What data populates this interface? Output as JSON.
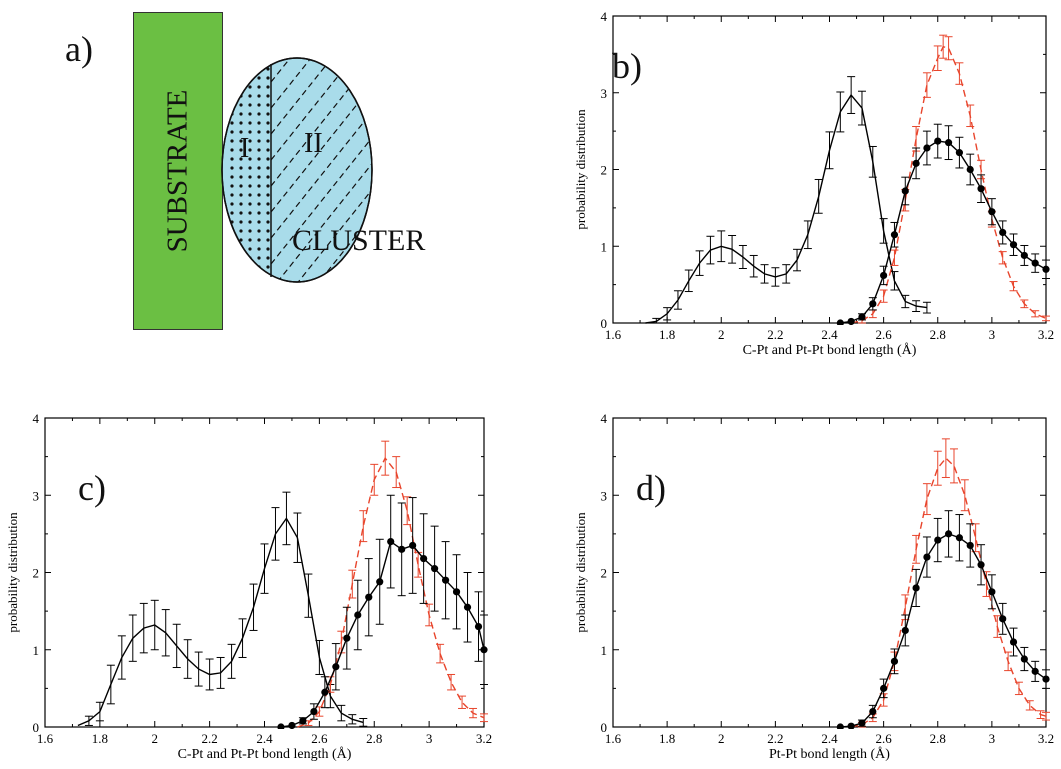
{
  "panel_a": {
    "label": "a)",
    "substrate": "SUBSTRATE",
    "cluster": "CLUSTER",
    "region_1": "I",
    "region_2": "II",
    "colors": {
      "substrate": "#6bbf43",
      "cluster": "#a9dcea"
    }
  },
  "chart_data": [
    {
      "panel": "b)",
      "type": "line",
      "xlabel": "C-Pt and Pt-Pt bond length (Å)",
      "ylabel": "probability distribution",
      "xlim": [
        1.6,
        3.2
      ],
      "ylim": [
        0,
        4
      ],
      "xticks": [
        "1.6",
        "1.8",
        "2",
        "2.2",
        "2.4",
        "2.6",
        "2.8",
        "3",
        "3.2"
      ],
      "yticks": [
        "0",
        "1",
        "2",
        "3",
        "4"
      ],
      "grid": false,
      "series": [
        {
          "style": "solid-errorbars",
          "color": "#000000",
          "points": [
            [
              1.72,
              0.0,
              0.02
            ],
            [
              1.76,
              0.02,
              0.04
            ],
            [
              1.8,
              0.12,
              0.08
            ],
            [
              1.84,
              0.3,
              0.12
            ],
            [
              1.88,
              0.55,
              0.14
            ],
            [
              1.92,
              0.78,
              0.16
            ],
            [
              1.96,
              0.95,
              0.18
            ],
            [
              2.0,
              1.0,
              0.2
            ],
            [
              2.04,
              0.96,
              0.18
            ],
            [
              2.08,
              0.86,
              0.15
            ],
            [
              2.12,
              0.74,
              0.14
            ],
            [
              2.16,
              0.64,
              0.12
            ],
            [
              2.2,
              0.6,
              0.12
            ],
            [
              2.24,
              0.64,
              0.12
            ],
            [
              2.28,
              0.82,
              0.14
            ],
            [
              2.32,
              1.15,
              0.18
            ],
            [
              2.36,
              1.65,
              0.22
            ],
            [
              2.4,
              2.25,
              0.24
            ],
            [
              2.44,
              2.75,
              0.26
            ],
            [
              2.48,
              2.97,
              0.24
            ],
            [
              2.52,
              2.8,
              0.22
            ],
            [
              2.56,
              2.1,
              0.2
            ],
            [
              2.6,
              1.2,
              0.16
            ],
            [
              2.64,
              0.55,
              0.12
            ],
            [
              2.68,
              0.28,
              0.08
            ],
            [
              2.72,
              0.22,
              0.07
            ],
            [
              2.76,
              0.2,
              0.07
            ]
          ]
        },
        {
          "style": "dashed-errorbars",
          "color": "#e8452c",
          "points": [
            [
              2.48,
              0.0,
              0.02
            ],
            [
              2.52,
              0.03,
              0.03
            ],
            [
              2.56,
              0.12,
              0.05
            ],
            [
              2.6,
              0.35,
              0.08
            ],
            [
              2.64,
              0.85,
              0.1
            ],
            [
              2.68,
              1.6,
              0.14
            ],
            [
              2.72,
              2.4,
              0.16
            ],
            [
              2.76,
              3.1,
              0.16
            ],
            [
              2.8,
              3.45,
              0.16
            ],
            [
              2.82,
              3.6,
              0.15
            ],
            [
              2.84,
              3.58,
              0.15
            ],
            [
              2.88,
              3.25,
              0.14
            ],
            [
              2.92,
              2.7,
              0.14
            ],
            [
              2.96,
              2.0,
              0.12
            ],
            [
              3.0,
              1.35,
              0.1
            ],
            [
              3.04,
              0.85,
              0.08
            ],
            [
              3.08,
              0.48,
              0.06
            ],
            [
              3.12,
              0.25,
              0.05
            ],
            [
              3.16,
              0.12,
              0.04
            ],
            [
              3.2,
              0.06,
              0.03
            ]
          ]
        },
        {
          "style": "dots-errorbars",
          "color": "#000000",
          "points": [
            [
              2.44,
              0.0,
              0.02
            ],
            [
              2.48,
              0.02,
              0.02
            ],
            [
              2.52,
              0.08,
              0.04
            ],
            [
              2.56,
              0.25,
              0.08
            ],
            [
              2.6,
              0.62,
              0.12
            ],
            [
              2.64,
              1.15,
              0.16
            ],
            [
              2.68,
              1.72,
              0.18
            ],
            [
              2.72,
              2.08,
              0.2
            ],
            [
              2.76,
              2.28,
              0.22
            ],
            [
              2.8,
              2.37,
              0.22
            ],
            [
              2.84,
              2.35,
              0.22
            ],
            [
              2.88,
              2.22,
              0.2
            ],
            [
              2.92,
              2.0,
              0.2
            ],
            [
              2.96,
              1.75,
              0.18
            ],
            [
              3.0,
              1.45,
              0.17
            ],
            [
              3.04,
              1.18,
              0.15
            ],
            [
              3.08,
              1.02,
              0.14
            ],
            [
              3.12,
              0.88,
              0.13
            ],
            [
              3.16,
              0.78,
              0.12
            ],
            [
              3.2,
              0.7,
              0.12
            ]
          ]
        }
      ]
    },
    {
      "panel": "c)",
      "type": "line",
      "xlabel": "C-Pt and Pt-Pt bond length (Å)",
      "ylabel": "probability distribution",
      "xlim": [
        1.6,
        3.2
      ],
      "ylim": [
        0,
        4
      ],
      "xticks": [
        "1.6",
        "1.8",
        "2",
        "2.2",
        "2.4",
        "2.6",
        "2.8",
        "3",
        "3.2"
      ],
      "yticks": [
        "0",
        "1",
        "2",
        "3",
        "4"
      ],
      "grid": false,
      "series": [
        {
          "style": "solid-errorbars",
          "color": "#000000",
          "points": [
            [
              1.72,
              0.02,
              0.02
            ],
            [
              1.76,
              0.08,
              0.06
            ],
            [
              1.8,
              0.2,
              0.12
            ],
            [
              1.84,
              0.55,
              0.25
            ],
            [
              1.88,
              0.9,
              0.28
            ],
            [
              1.92,
              1.15,
              0.3
            ],
            [
              1.96,
              1.28,
              0.32
            ],
            [
              2.0,
              1.32,
              0.32
            ],
            [
              2.04,
              1.22,
              0.3
            ],
            [
              2.08,
              1.05,
              0.28
            ],
            [
              2.12,
              0.88,
              0.25
            ],
            [
              2.16,
              0.75,
              0.22
            ],
            [
              2.2,
              0.68,
              0.2
            ],
            [
              2.24,
              0.7,
              0.2
            ],
            [
              2.28,
              0.85,
              0.22
            ],
            [
              2.32,
              1.15,
              0.25
            ],
            [
              2.36,
              1.55,
              0.3
            ],
            [
              2.4,
              2.05,
              0.32
            ],
            [
              2.44,
              2.5,
              0.34
            ],
            [
              2.48,
              2.7,
              0.34
            ],
            [
              2.52,
              2.45,
              0.32
            ],
            [
              2.56,
              1.7,
              0.28
            ],
            [
              2.6,
              0.9,
              0.22
            ],
            [
              2.64,
              0.4,
              0.15
            ],
            [
              2.68,
              0.18,
              0.1
            ],
            [
              2.72,
              0.1,
              0.06
            ],
            [
              2.76,
              0.06,
              0.05
            ]
          ]
        },
        {
          "style": "dashed-errorbars",
          "color": "#e8452c",
          "points": [
            [
              2.52,
              0.0,
              0.02
            ],
            [
              2.56,
              0.05,
              0.03
            ],
            [
              2.6,
              0.2,
              0.06
            ],
            [
              2.64,
              0.55,
              0.1
            ],
            [
              2.68,
              1.1,
              0.14
            ],
            [
              2.72,
              1.85,
              0.18
            ],
            [
              2.76,
              2.6,
              0.2
            ],
            [
              2.8,
              3.2,
              0.2
            ],
            [
              2.84,
              3.48,
              0.22
            ],
            [
              2.88,
              3.3,
              0.2
            ],
            [
              2.92,
              2.8,
              0.18
            ],
            [
              2.96,
              2.1,
              0.16
            ],
            [
              3.0,
              1.45,
              0.14
            ],
            [
              3.04,
              0.95,
              0.12
            ],
            [
              3.08,
              0.58,
              0.1
            ],
            [
              3.12,
              0.32,
              0.08
            ],
            [
              3.16,
              0.18,
              0.06
            ],
            [
              3.2,
              0.12,
              0.05
            ]
          ]
        },
        {
          "style": "dots-errorbars",
          "color": "#000000",
          "points": [
            [
              2.46,
              0.0,
              0.02
            ],
            [
              2.5,
              0.02,
              0.02
            ],
            [
              2.54,
              0.08,
              0.04
            ],
            [
              2.58,
              0.2,
              0.1
            ],
            [
              2.62,
              0.45,
              0.2
            ],
            [
              2.66,
              0.78,
              0.3
            ],
            [
              2.7,
              1.15,
              0.4
            ],
            [
              2.74,
              1.45,
              0.45
            ],
            [
              2.78,
              1.68,
              0.5
            ],
            [
              2.82,
              1.88,
              0.55
            ],
            [
              2.86,
              2.4,
              0.6
            ],
            [
              2.9,
              2.3,
              0.6
            ],
            [
              2.94,
              2.35,
              0.62
            ],
            [
              2.98,
              2.18,
              0.58
            ],
            [
              3.02,
              2.05,
              0.55
            ],
            [
              3.06,
              1.9,
              0.5
            ],
            [
              3.1,
              1.75,
              0.48
            ],
            [
              3.14,
              1.55,
              0.45
            ],
            [
              3.18,
              1.3,
              0.45
            ],
            [
              3.2,
              1.0,
              0.45
            ]
          ]
        }
      ]
    },
    {
      "panel": "d)",
      "type": "line",
      "xlabel": "Pt-Pt bond length (Å)",
      "ylabel": "probability distribution",
      "xlim": [
        1.6,
        3.2
      ],
      "ylim": [
        0,
        4
      ],
      "xticks": [
        "1.6",
        "1.8",
        "2",
        "2.2",
        "2.4",
        "2.6",
        "2.8",
        "3",
        "3.2"
      ],
      "yticks": [
        "0",
        "1",
        "2",
        "3",
        "4"
      ],
      "grid": false,
      "series": [
        {
          "style": "dashed-errorbars",
          "color": "#e8452c",
          "points": [
            [
              2.48,
              0.0,
              0.02
            ],
            [
              2.52,
              0.03,
              0.03
            ],
            [
              2.56,
              0.12,
              0.05
            ],
            [
              2.6,
              0.35,
              0.08
            ],
            [
              2.64,
              0.85,
              0.12
            ],
            [
              2.68,
              1.55,
              0.16
            ],
            [
              2.72,
              2.3,
              0.18
            ],
            [
              2.76,
              2.95,
              0.2
            ],
            [
              2.8,
              3.35,
              0.22
            ],
            [
              2.83,
              3.48,
              0.25
            ],
            [
              2.86,
              3.38,
              0.22
            ],
            [
              2.9,
              3.0,
              0.2
            ],
            [
              2.94,
              2.45,
              0.18
            ],
            [
              2.98,
              1.85,
              0.16
            ],
            [
              3.02,
              1.3,
              0.14
            ],
            [
              3.06,
              0.85,
              0.12
            ],
            [
              3.1,
              0.5,
              0.08
            ],
            [
              3.14,
              0.28,
              0.06
            ],
            [
              3.18,
              0.16,
              0.05
            ],
            [
              3.2,
              0.14,
              0.05
            ]
          ]
        },
        {
          "style": "dots-errorbars",
          "color": "#000000",
          "points": [
            [
              2.44,
              0.0,
              0.02
            ],
            [
              2.48,
              0.01,
              0.02
            ],
            [
              2.52,
              0.05,
              0.04
            ],
            [
              2.56,
              0.2,
              0.08
            ],
            [
              2.6,
              0.5,
              0.12
            ],
            [
              2.64,
              0.85,
              0.16
            ],
            [
              2.68,
              1.25,
              0.2
            ],
            [
              2.72,
              1.8,
              0.24
            ],
            [
              2.76,
              2.2,
              0.26
            ],
            [
              2.8,
              2.42,
              0.28
            ],
            [
              2.84,
              2.5,
              0.3
            ],
            [
              2.88,
              2.45,
              0.3
            ],
            [
              2.92,
              2.35,
              0.28
            ],
            [
              2.96,
              2.1,
              0.26
            ],
            [
              3.0,
              1.75,
              0.22
            ],
            [
              3.04,
              1.4,
              0.2
            ],
            [
              3.08,
              1.1,
              0.18
            ],
            [
              3.12,
              0.88,
              0.15
            ],
            [
              3.16,
              0.72,
              0.13
            ],
            [
              3.2,
              0.62,
              0.12
            ]
          ]
        }
      ]
    }
  ]
}
